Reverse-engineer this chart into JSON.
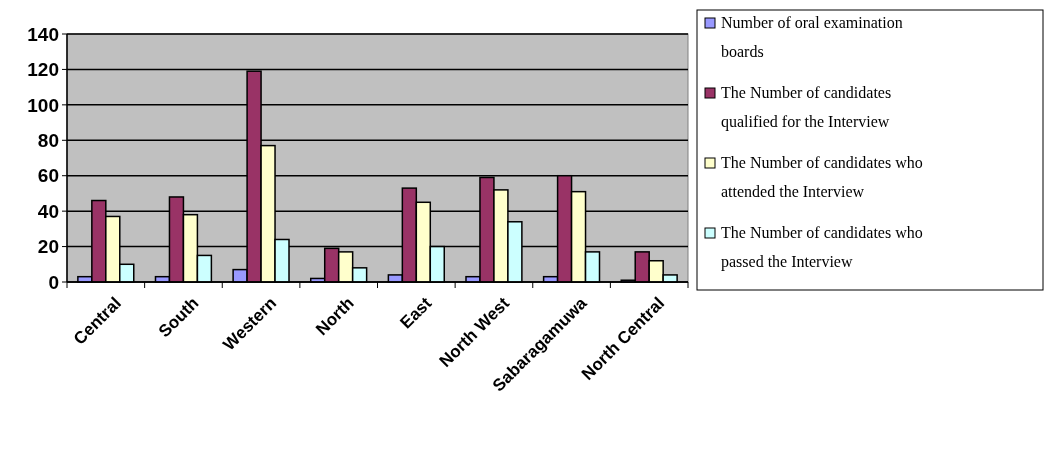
{
  "chart_data": {
    "type": "bar",
    "categories": [
      "Central",
      "South",
      "Western",
      "North",
      "East",
      "North West",
      "Sabaragamuwa",
      "North Central"
    ],
    "series": [
      {
        "name": "Number of oral examination boards",
        "color": "#9999ff",
        "values": [
          3,
          3,
          7,
          2,
          4,
          3,
          3,
          1
        ]
      },
      {
        "name": "The Number of candidates qualified for the Interview",
        "color": "#993366",
        "values": [
          46,
          48,
          119,
          19,
          53,
          59,
          60,
          17
        ]
      },
      {
        "name": "The Number of candidates who attended the Interview",
        "color": "#ffffcc",
        "values": [
          37,
          38,
          77,
          17,
          45,
          52,
          51,
          12
        ]
      },
      {
        "name": "The Number of candidates who passed the Interview",
        "color": "#ccffff",
        "values": [
          10,
          15,
          24,
          8,
          20,
          34,
          17,
          4
        ]
      }
    ],
    "ylim": [
      0,
      140
    ],
    "yticks": [
      0,
      20,
      40,
      60,
      80,
      100,
      120,
      140
    ],
    "grid": "y",
    "legend": "right"
  }
}
